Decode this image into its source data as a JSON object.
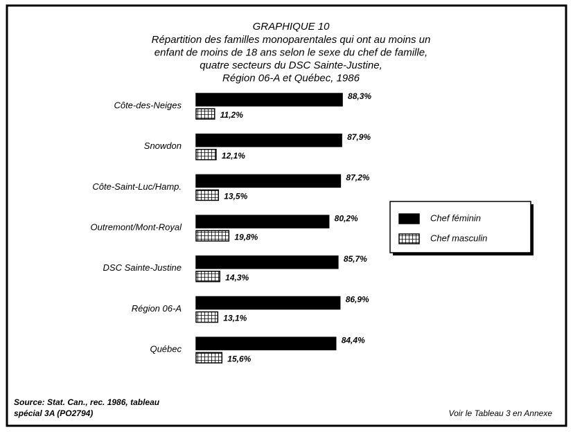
{
  "chart_data": {
    "type": "bar",
    "orientation": "horizontal",
    "title": "GRAPHIQUE 10",
    "subtitle": [
      "Répartition des familles monoparentales qui ont au moins un",
      "enfant de moins de 18 ans selon le sexe du chef de famille,",
      "quatre secteurs du DSC Sainte-Justine,",
      "Région 06-A et Québec, 1986"
    ],
    "categories": [
      "Côte-des-Neiges",
      "Snowdon",
      "Côte-Saint-Luc/Hamp.",
      "Outremont/Mont-Royal",
      "DSC Sainte-Justine",
      "Région 06-A",
      "Québec"
    ],
    "series": [
      {
        "name": "Chef féminin",
        "color": "#000000",
        "values": [
          88.3,
          87.9,
          87.2,
          80.2,
          85.7,
          86.9,
          84.4
        ],
        "value_labels": [
          "88,3%",
          "87,9%",
          "87,2%",
          "80,2%",
          "85,7%",
          "86,9%",
          "84,4%"
        ]
      },
      {
        "name": "Chef masculin",
        "color": "#000000",
        "hatch": "grid",
        "values": [
          11.2,
          12.1,
          13.5,
          19.8,
          14.3,
          13.1,
          15.6
        ],
        "value_labels": [
          "11,2%",
          "12,1%",
          "13,5%",
          "19,8%",
          "14,3%",
          "13,1%",
          "15,6%"
        ]
      }
    ],
    "legend": "right",
    "source": [
      "Source: Stat. Can., rec. 1986, tableau",
      "spécial 3A (PO2794)"
    ],
    "note": "Voir le Tableau 3 en Annexe"
  }
}
